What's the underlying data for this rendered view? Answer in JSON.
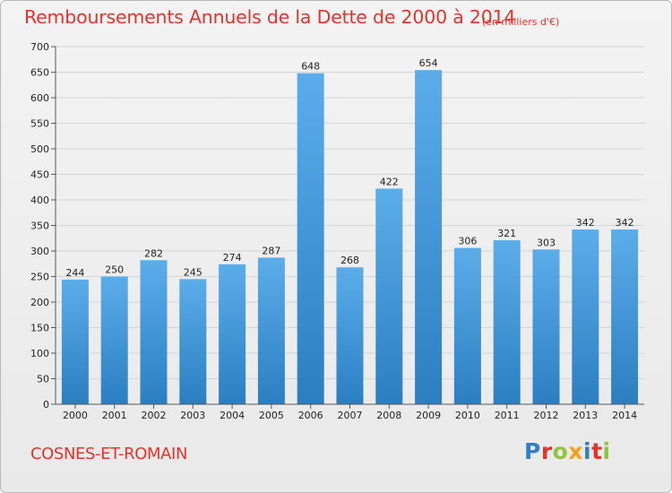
{
  "title": "Remboursements Annuels de la Dette de 2000 à 2014",
  "unit_note": "(en milliers d'€)",
  "commune": "COSNES-ET-ROMAIN",
  "logo": {
    "text": "Proxiti",
    "letters": [
      {
        "char": "P",
        "color": "#2f7fc3"
      },
      {
        "char": "r",
        "color": "#e2342a"
      },
      {
        "char": "o",
        "color": "#8cc63e"
      },
      {
        "char": "x",
        "color": "#f4a21a"
      },
      {
        "char": "i",
        "color": "#2f7fc3"
      },
      {
        "char": "t",
        "color": "#e2342a"
      },
      {
        "char": "i",
        "color": "#8cc63e"
      }
    ]
  },
  "colors": {
    "bar_top": "#5badea",
    "bar_bottom": "#2b7fc1",
    "grid": "#d4d4d4",
    "axis": "#555555"
  },
  "chart_data": {
    "type": "bar",
    "categories": [
      "2000",
      "2001",
      "2002",
      "2003",
      "2004",
      "2005",
      "2006",
      "2007",
      "2008",
      "2009",
      "2010",
      "2011",
      "2012",
      "2013",
      "2014"
    ],
    "values": [
      244,
      250,
      282,
      245,
      274,
      287,
      648,
      268,
      422,
      654,
      306,
      321,
      303,
      342,
      342
    ],
    "ylim": [
      0,
      700
    ],
    "yticks": [
      0,
      50,
      100,
      150,
      200,
      250,
      300,
      350,
      400,
      450,
      500,
      550,
      600,
      650,
      700
    ],
    "grid": true
  }
}
